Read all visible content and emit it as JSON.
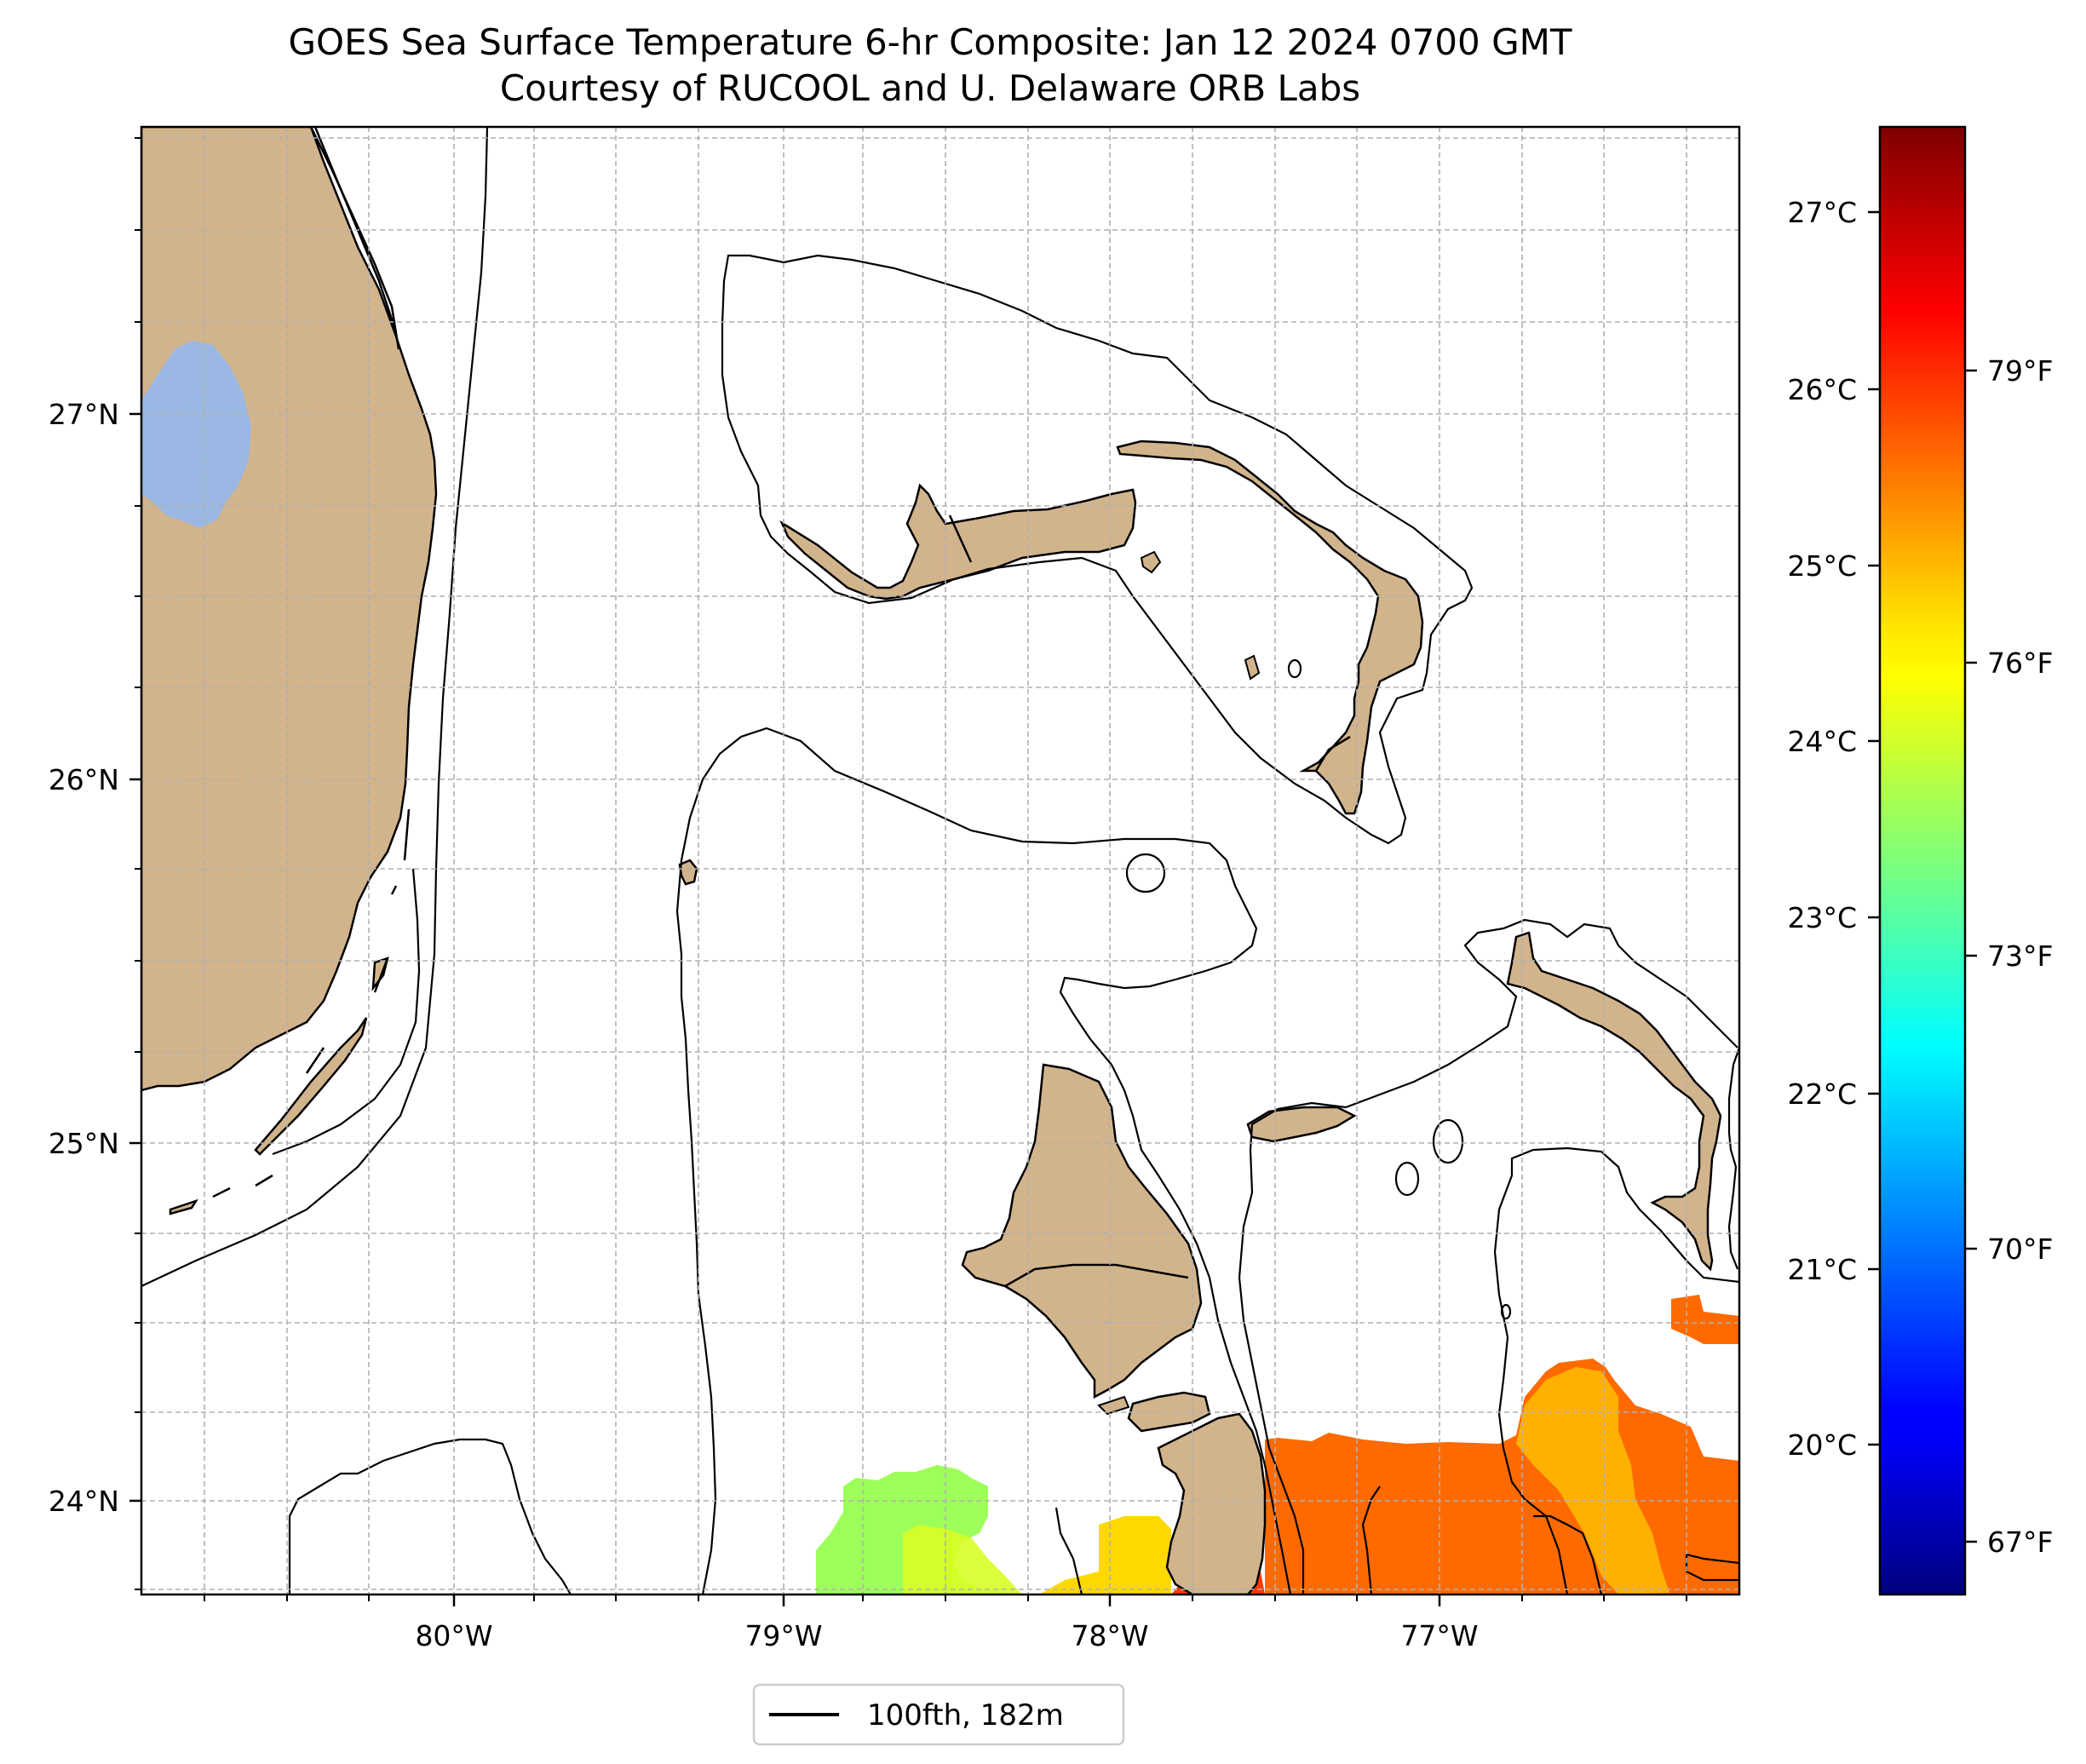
{
  "map": {
    "title_line1": "GOES Sea Surface Temperature 6-hr Composite: Jan 12 2024 0700 GMT",
    "title_line2": "Courtesy of RUCOOL and U. Delaware ORB Labs",
    "lon_ticks": [
      "80°W",
      "79°W",
      "78°W",
      "77°W"
    ],
    "lat_ticks": [
      "27°N",
      "26°N",
      "25°N",
      "24°N"
    ],
    "extent": {
      "lon": [
        -81.0,
        -76.1
      ],
      "lat": [
        23.8,
        27.8
      ]
    },
    "grid": true,
    "colors": {
      "land": "#d2b48c",
      "lake": "#9ab8e3",
      "contour": "#000000",
      "grid": "#b0b0b0"
    },
    "legend": {
      "label": "100fth, 182m",
      "placement": "bottom-center"
    }
  },
  "colorbar": {
    "celsius_ticks": [
      "27°C",
      "26°C",
      "25°C",
      "24°C",
      "23°C",
      "22°C",
      "21°C",
      "20°C"
    ],
    "fahrenheit_ticks": [
      "79°F",
      "76°F",
      "73°F",
      "70°F",
      "67°F"
    ],
    "colormap": "jet"
  }
}
